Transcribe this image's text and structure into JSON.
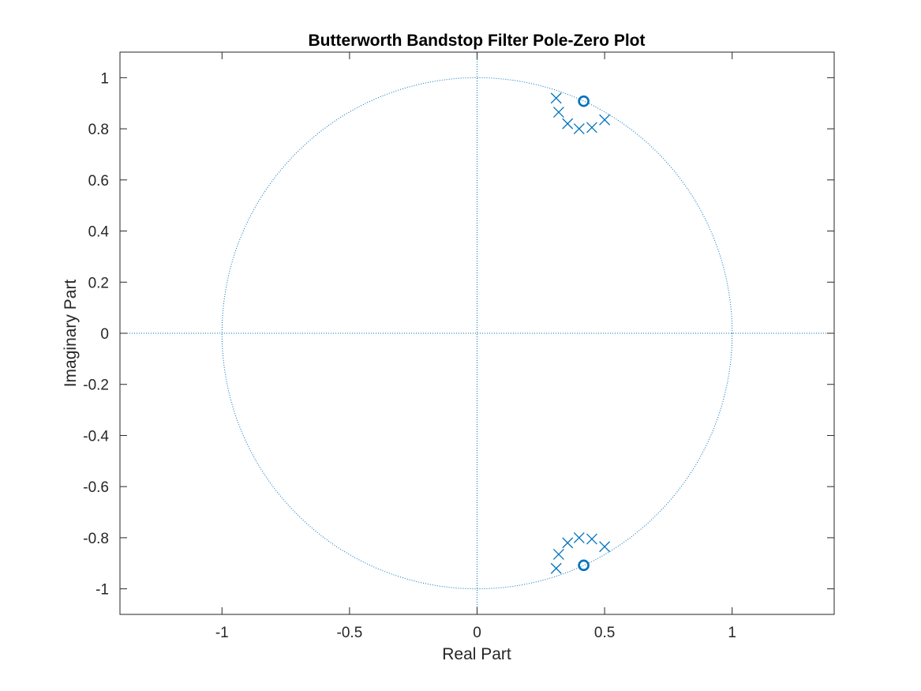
{
  "chart_data": {
    "type": "scatter",
    "title": "Butterworth Bandstop Filter Pole-Zero Plot",
    "xlabel": "Real Part",
    "ylabel": "Imaginary Part",
    "xlim": [
      -1.4,
      1.4
    ],
    "ylim": [
      -1.1,
      1.1
    ],
    "grid": false,
    "xticks": [
      -1,
      -0.5,
      0,
      0.5,
      1
    ],
    "xtick_labels": [
      "-1",
      "-0.5",
      "0",
      "0.5",
      "1"
    ],
    "yticks": [
      1,
      0.8,
      0.6,
      0.4,
      0.2,
      0,
      -0.2,
      -0.4,
      -0.6,
      -0.8,
      -1
    ],
    "ytick_labels": [
      "1",
      "0.8",
      "0.6",
      "0.4",
      "0.2",
      "0",
      "-0.2",
      "-0.4",
      "-0.6",
      "-0.8",
      "-1"
    ],
    "unit_circle": true,
    "reference_axes": true,
    "series": [
      {
        "marker": "x",
        "x": [
          0.31,
          0.32,
          0.355,
          0.4,
          0.45,
          0.5,
          0.31,
          0.32,
          0.355,
          0.4,
          0.45,
          0.5
        ],
        "y": [
          0.92,
          0.865,
          0.82,
          0.8,
          0.805,
          0.835,
          -0.92,
          -0.865,
          -0.82,
          -0.8,
          -0.805,
          -0.835
        ]
      },
      {
        "marker": "o",
        "x": [
          0.418,
          0.418
        ],
        "y": [
          0.908,
          -0.908
        ]
      }
    ],
    "color": "#0072BD"
  }
}
